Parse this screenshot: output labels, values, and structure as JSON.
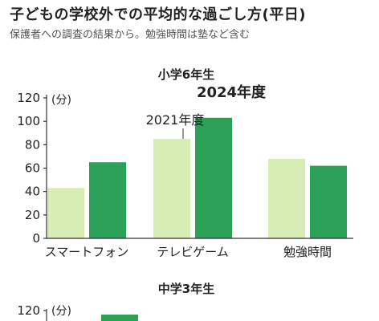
{
  "header": {
    "title": "子どもの学校外での平均的な過ごし方(平日)",
    "subtitle": "保護者への調査の結果から。勉強時間は塾など含む"
  },
  "colors": {
    "y2021": "#d8edb3",
    "y2024": "#2aa157",
    "axis": "#333333"
  },
  "chart_data": [
    {
      "type": "bar",
      "title": "小学6年生",
      "ylabel": "(分)",
      "ylim": [
        0,
        120
      ],
      "yticks": [
        "120",
        "100",
        "80",
        "60",
        "40",
        "20",
        "0"
      ],
      "categories": [
        "スマートフォン",
        "テレビゲーム",
        "勉強時間"
      ],
      "series": [
        {
          "name": "2021年度",
          "values": [
            43,
            85,
            68
          ]
        },
        {
          "name": "2024年度",
          "values": [
            65,
            103,
            62
          ]
        }
      ],
      "legend": "inline-above-bars"
    },
    {
      "type": "bar",
      "title": "中学3年生",
      "ylabel": "(分)",
      "ylim": [
        0,
        120
      ],
      "yticks": [
        "120"
      ],
      "categories": [],
      "series": [
        {
          "values": []
        },
        {
          "values": []
        }
      ],
      "legend": "none"
    }
  ]
}
